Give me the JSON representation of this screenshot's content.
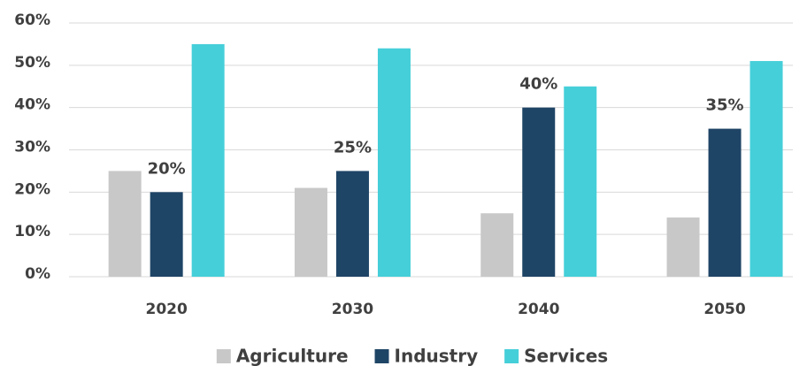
{
  "chart_data": {
    "type": "bar",
    "categories": [
      "2020",
      "2030",
      "2040",
      "2050"
    ],
    "series": [
      {
        "name": "Agriculture",
        "color": "#c8c8c8",
        "values": [
          25,
          21,
          15,
          14
        ]
      },
      {
        "name": "Industry",
        "color": "#1f4566",
        "values": [
          20,
          25,
          40,
          35
        ],
        "value_labels": [
          "20%",
          "25%",
          "40%",
          "35%"
        ]
      },
      {
        "name": "Services",
        "color": "#45cfd9",
        "values": [
          55,
          54,
          45,
          51
        ]
      }
    ],
    "ylim": [
      0,
      60
    ],
    "yticks": [
      {
        "value": 0,
        "label": "0%"
      },
      {
        "value": 10,
        "label": "10%"
      },
      {
        "value": 20,
        "label": "20%"
      },
      {
        "value": 30,
        "label": "30%"
      },
      {
        "value": 40,
        "label": "40%"
      },
      {
        "value": 50,
        "label": "50%"
      },
      {
        "value": 60,
        "label": "60%"
      }
    ],
    "grid": true,
    "legend": "bottom"
  }
}
